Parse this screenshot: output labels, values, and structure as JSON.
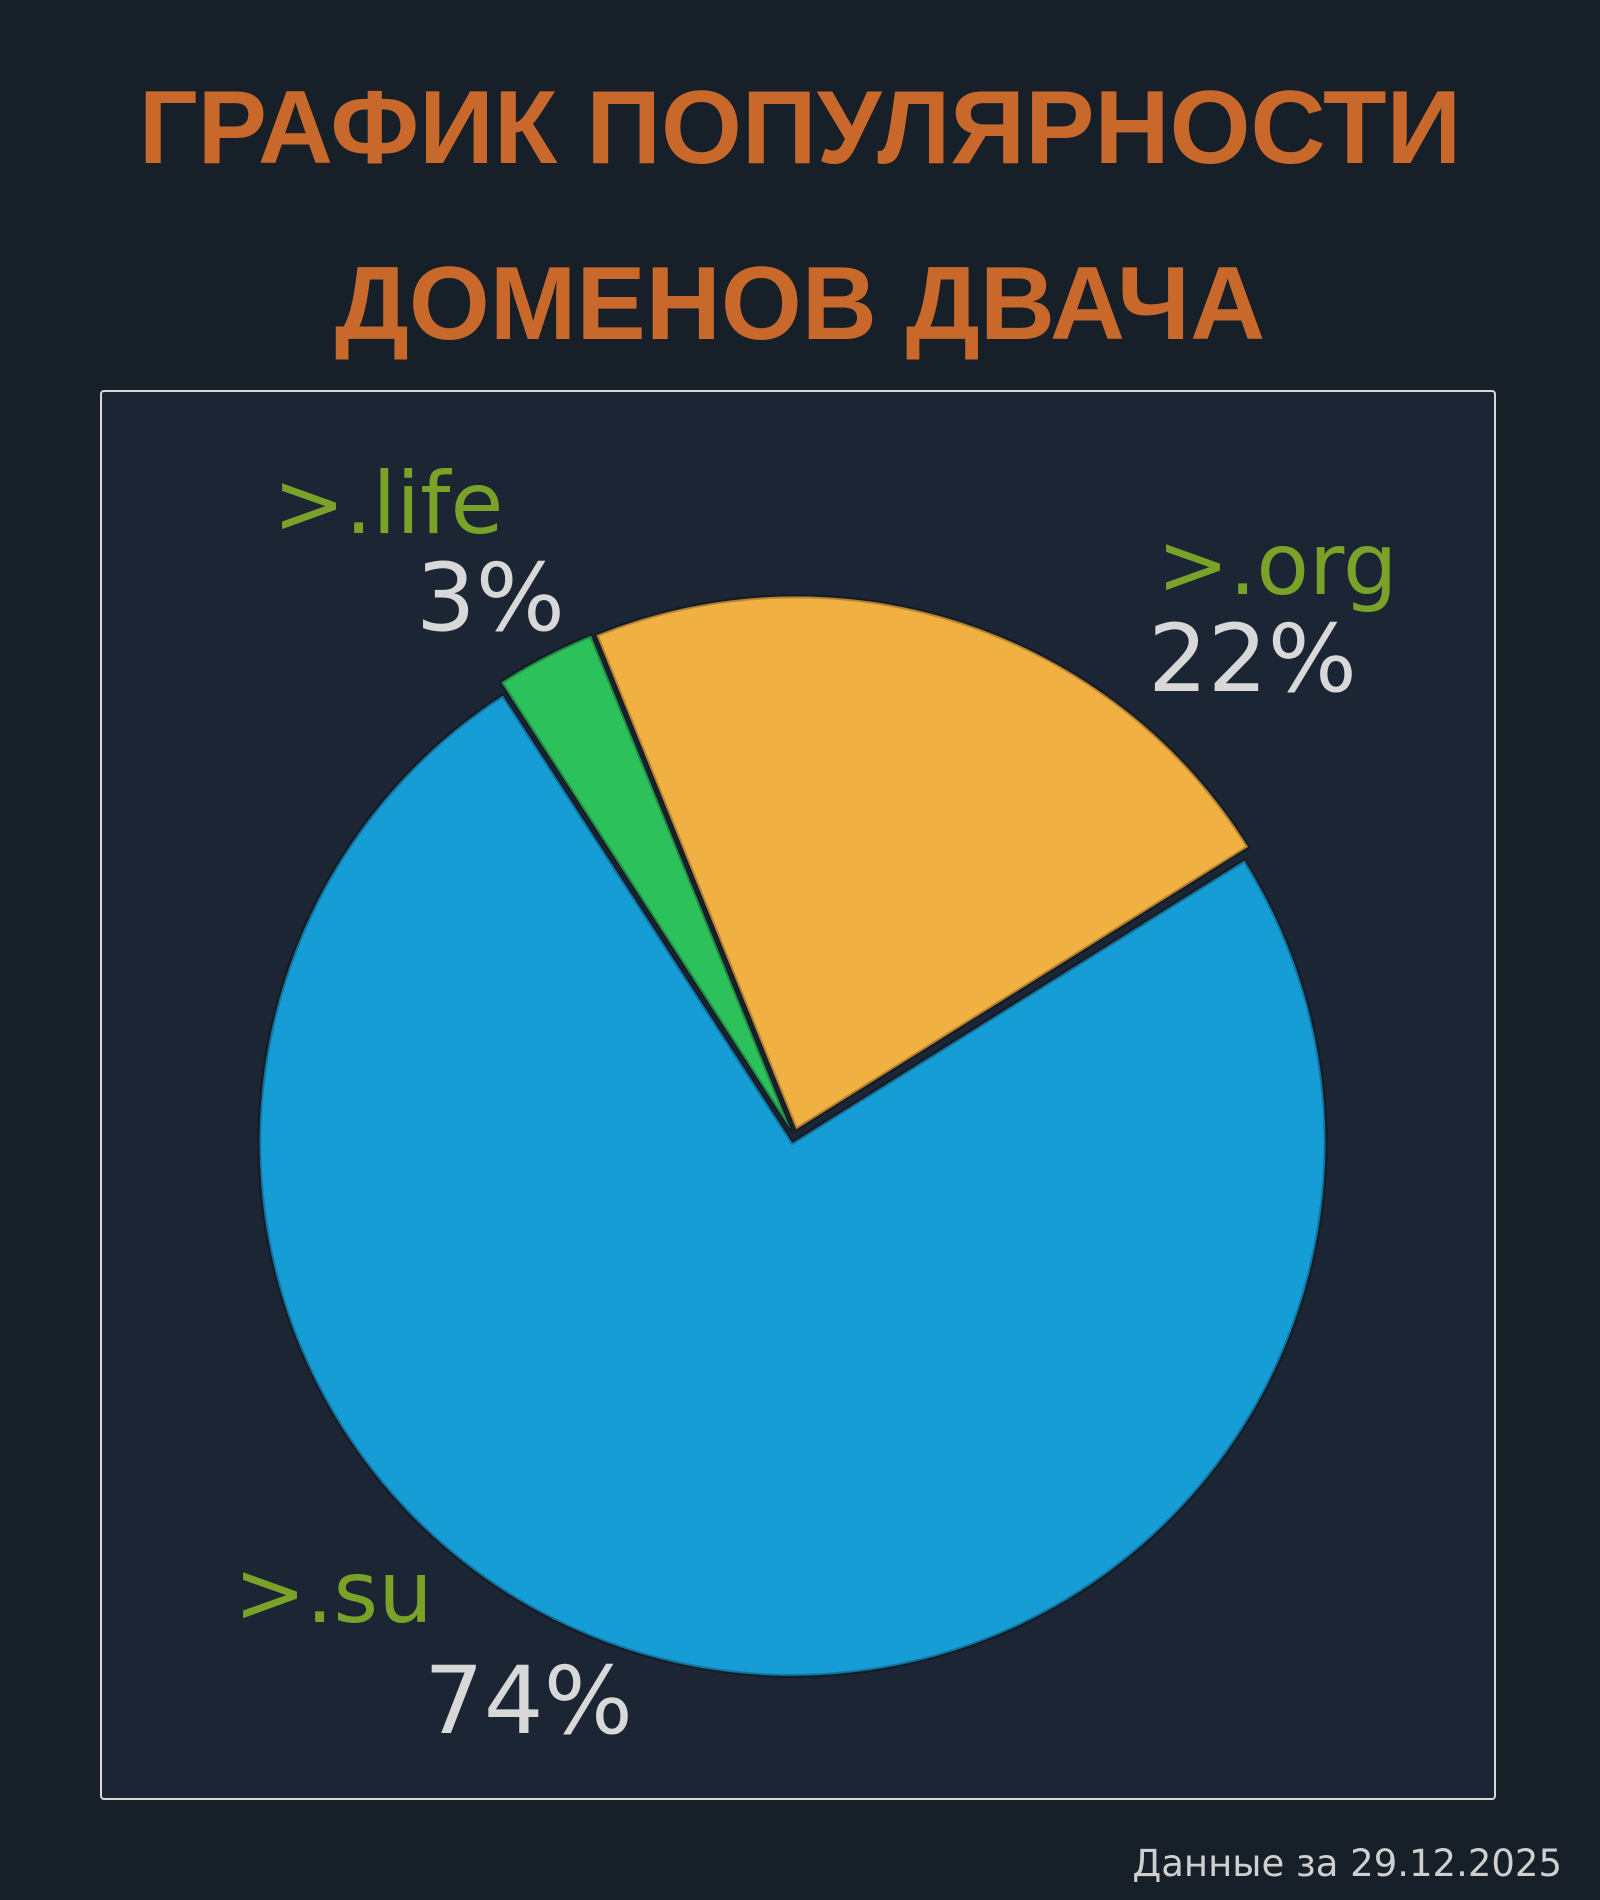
{
  "chart_data": {
    "type": "pie",
    "title": "ГРАФИК ПОПУЛЯРНОСТИ ДОМЕНОВ ДВАЧА",
    "categories": [
      ">.su",
      ">.life",
      ">.org"
    ],
    "values": [
      74,
      3,
      22
    ],
    "value_labels": [
      "74%",
      "3%",
      "22%"
    ],
    "colors": [
      "#179dd6",
      "#2cc15b",
      "#f0b042"
    ],
    "note": "Данные за 29.12.2025"
  }
}
